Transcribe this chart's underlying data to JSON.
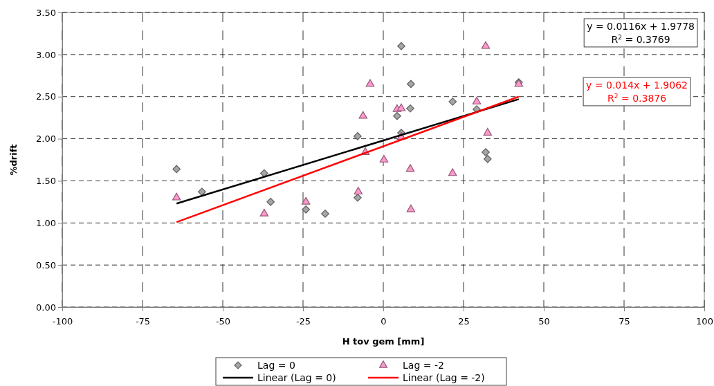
{
  "chart_data": {
    "type": "scatter",
    "xlabel": "H tov gem [mm]",
    "ylabel": "%drift",
    "xlim": [
      -100,
      100
    ],
    "xticks": [
      -100,
      -75,
      -50,
      -25,
      0,
      25,
      50,
      75,
      100
    ],
    "ylim": [
      0,
      3.5
    ],
    "yticks": [
      {
        "value": 0,
        "label": "0.00"
      },
      {
        "value": 0.5,
        "label": "0.50"
      },
      {
        "value": 1,
        "label": "1.00"
      },
      {
        "value": 1.5,
        "label": "1.50"
      },
      {
        "value": 2,
        "label": "2.00"
      },
      {
        "value": 2.5,
        "label": "2.50"
      },
      {
        "value": 3,
        "label": "3.00"
      },
      {
        "value": 3.5,
        "label": "3.50"
      }
    ],
    "grid": true,
    "legend": "bottom",
    "series": [
      {
        "name": "Lag = 0",
        "marker": "diamond",
        "color": "#a6a6a6",
        "x": [
          -64.4,
          -56.5,
          -37.1,
          -35.1,
          -18.1,
          -24.1,
          -8.0,
          -8.0,
          4.3,
          5.6,
          5.6,
          8.4,
          8.6,
          21.6,
          29.1,
          31.9,
          32.5,
          42.2
        ],
        "values": [
          1.64,
          1.37,
          1.59,
          1.25,
          1.11,
          1.16,
          2.03,
          1.3,
          2.27,
          3.1,
          2.07,
          2.36,
          2.65,
          2.44,
          2.35,
          1.84,
          1.76,
          2.67
        ]
      },
      {
        "name": "Lag = -2",
        "marker": "triangle",
        "color": "#ff99cc",
        "x": [
          -64.4,
          -37.1,
          -24.1,
          -7.8,
          -6.3,
          -5.6,
          -4.1,
          0.2,
          4.3,
          5.6,
          5.6,
          8.4,
          8.6,
          21.6,
          29.1,
          31.9,
          32.5,
          42.2
        ],
        "values": [
          1.3,
          1.11,
          1.25,
          1.37,
          2.27,
          1.84,
          2.65,
          1.75,
          2.35,
          2.36,
          2.02,
          1.64,
          1.16,
          1.59,
          2.44,
          3.1,
          2.07,
          2.65
        ]
      },
      {
        "name": "Linear (Lag = 0)",
        "type": "line",
        "marker": "none",
        "color": "#000000",
        "x": [
          -64.4,
          42.2
        ],
        "values": [
          1.23,
          2.47
        ]
      },
      {
        "name": "Linear (Lag = -2)",
        "type": "line",
        "marker": "none",
        "color": "#ff0000",
        "x": [
          -64.4,
          42.2
        ],
        "values": [
          1.01,
          2.5
        ]
      }
    ],
    "annotations": [
      "y = 0.0116x + 1.9778\nR$^{2}$ = 0.3769",
      "y = 0.014x + 1.9062\nR$^{2}$ = 0.3876"
    ]
  }
}
